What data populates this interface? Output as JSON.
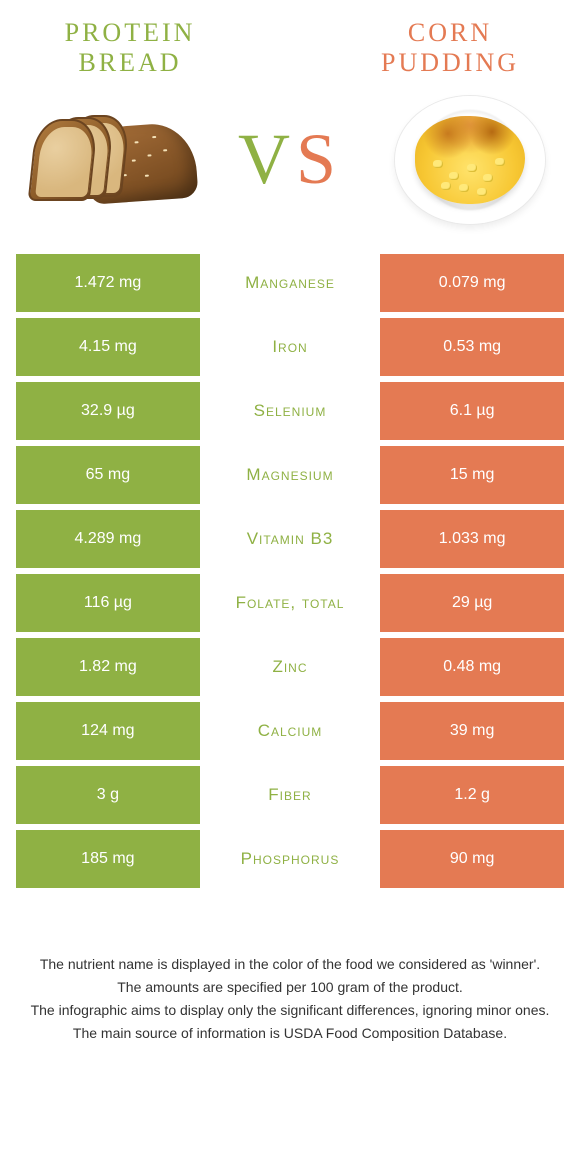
{
  "colors": {
    "left_bg": "#8fb144",
    "right_bg": "#e47a53",
    "left_title": "#8fb144",
    "right_title": "#e47a53",
    "vs_v": "#8fb144",
    "vs_s": "#e47a53",
    "nutrient_text": "#8fb144",
    "value_text": "#ffffff",
    "footer_text": "#333333"
  },
  "header": {
    "left_title": "Protein bread",
    "right_title": "Corn pudding",
    "vs_v": "V",
    "vs_s": "S"
  },
  "rows": [
    {
      "nutrient": "Manganese",
      "left": "1.472 mg",
      "right": "0.079 mg",
      "winner": "left"
    },
    {
      "nutrient": "Iron",
      "left": "4.15 mg",
      "right": "0.53 mg",
      "winner": "left"
    },
    {
      "nutrient": "Selenium",
      "left": "32.9 µg",
      "right": "6.1 µg",
      "winner": "left"
    },
    {
      "nutrient": "Magnesium",
      "left": "65 mg",
      "right": "15 mg",
      "winner": "left"
    },
    {
      "nutrient": "Vitamin B3",
      "left": "4.289 mg",
      "right": "1.033 mg",
      "winner": "left"
    },
    {
      "nutrient": "Folate, total",
      "left": "116 µg",
      "right": "29 µg",
      "winner": "left"
    },
    {
      "nutrient": "Zinc",
      "left": "1.82 mg",
      "right": "0.48 mg",
      "winner": "left"
    },
    {
      "nutrient": "Calcium",
      "left": "124 mg",
      "right": "39 mg",
      "winner": "left"
    },
    {
      "nutrient": "Fiber",
      "left": "3 g",
      "right": "1.2 g",
      "winner": "left"
    },
    {
      "nutrient": "Phosphorus",
      "left": "185 mg",
      "right": "90 mg",
      "winner": "left"
    }
  ],
  "footer": [
    "The nutrient name is displayed in the color of the food we considered as 'winner'.",
    "The amounts are specified per 100 gram of the product.",
    "The infographic aims to display only the significant differences, ignoring minor ones.",
    "The main source of information is USDA Food Composition Database."
  ]
}
